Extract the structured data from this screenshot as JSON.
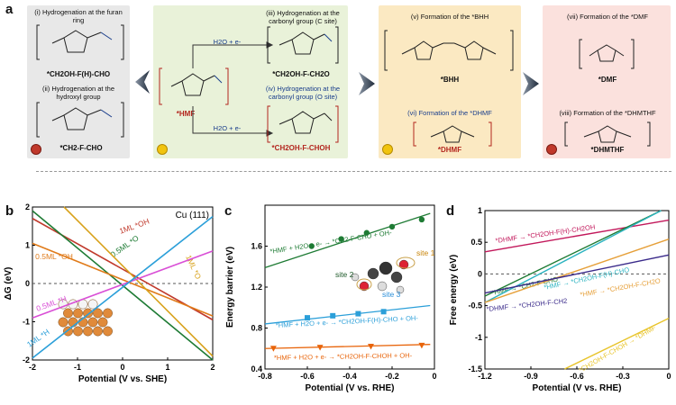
{
  "panel_a": {
    "label": "a",
    "gray": {
      "title1": "(i) Hydrogenation at the furan ring",
      "product1": "*CH2OH-F(H)-CHO",
      "title2": "(ii) Hydrogenation at the hydroxyl group",
      "product2": "*CH2-F-CHO"
    },
    "green": {
      "start": "*HMF",
      "h2o_top": "H2O + e-",
      "h2o_bottom": "H2O + e-",
      "title3": "(iii) Hydrogenation at the carbonyl group (C site)",
      "product3": "*CH2OH-F-CH2O",
      "title4": "(iv) Hydrogenation at the carbonyl group (O site)",
      "product4": "*CH2OH-F-CHOH"
    },
    "yellow": {
      "title5": "(v) Formation of the *BHH",
      "product5": "*BHH",
      "title6": "(vi) Formation of the *DHMF",
      "product6": "*DHMF"
    },
    "pink": {
      "title7": "(vii) Formation of the *DMF",
      "product7": "*DMF",
      "title8": "(viii) Formation of the *DHMTHF",
      "product8": "*DHMTHF"
    }
  },
  "panel_b": {
    "label": "b",
    "surface": "Cu (111)",
    "ylabel": "ΔG (eV)",
    "xlabel": "Potential (V vs. SHE)",
    "line_labels": [
      "1ML *OH",
      "0.5ML *O",
      "0.5ML *OH",
      "1ML *O",
      "0.5ML *H",
      "1ML *H"
    ]
  },
  "panel_c": {
    "label": "c",
    "ylabel": "Energy barrier (eV)",
    "xlabel": "Potential (V vs. RHE)",
    "site_labels": [
      "site 1",
      "site 2",
      "site 3"
    ],
    "series_labels": [
      "*HMF + H2O + e- → *CH2-F-CHO + OH-",
      "*HMF + H2O + e- → *CH2OH-F(H)-CHO + OH-",
      "*HMF + H2O + e- → *CH2OH-F-CHOH + OH-"
    ]
  },
  "panel_d": {
    "label": "d",
    "ylabel": "Free energy (eV)",
    "xlabel": "Potential (V vs. RHE)",
    "line_labels": [
      "*DHMF → *CH2OH-F(H)-CH2OH",
      "*HMF → *CH2-F-CHO",
      "*HMF → *CH2OH-F(H)-CHO",
      "*HMF → *CH2OH-F-CH2O",
      "*DHMF → *CH2OH-F-CH2",
      "*CH2OH-F-CHOH → *DHMF"
    ]
  },
  "chart_data": [
    {
      "type": "line",
      "panel": "b",
      "xlabel": "Potential (V vs. SHE)",
      "ylabel": "ΔG (eV)",
      "xlim": [
        -2,
        2
      ],
      "ylim": [
        -2,
        2
      ],
      "xticks": [
        -2,
        -1,
        0,
        1,
        2
      ],
      "yticks": [
        -2,
        -1,
        0,
        1,
        2
      ],
      "series": [
        {
          "name": "1ML *OH",
          "color": "#c0392b",
          "x": [
            -2,
            2
          ],
          "y": [
            1.7,
            -0.95
          ]
        },
        {
          "name": "0.5ML *O",
          "color": "#1e7b34",
          "x": [
            -2,
            2
          ],
          "y": [
            1.9,
            -2.0
          ]
        },
        {
          "name": "0.5ML *OH",
          "color": "#e07b1a",
          "x": [
            -2,
            2
          ],
          "y": [
            1.05,
            -0.85
          ]
        },
        {
          "name": "1ML *O",
          "color": "#d8a21c",
          "x": [
            -1.3,
            2
          ],
          "y": [
            2.0,
            -1.9
          ]
        },
        {
          "name": "0.5ML *H",
          "color": "#d94fd6",
          "x": [
            -2,
            2
          ],
          "y": [
            -0.9,
            0.85
          ]
        },
        {
          "name": "1ML *H",
          "color": "#2b9fd9",
          "x": [
            -2,
            2
          ],
          "y": [
            -1.95,
            1.75
          ]
        }
      ]
    },
    {
      "type": "line",
      "panel": "c",
      "xlabel": "Potential (V vs. RHE)",
      "ylabel": "Energy barrier (eV)",
      "xlim": [
        -0.8,
        0.0
      ],
      "ylim": [
        0.4,
        2.0
      ],
      "xticks": [
        -0.8,
        -0.6,
        -0.4,
        -0.2,
        0.0
      ],
      "yticks": [
        0.4,
        0.8,
        1.2,
        1.6
      ],
      "series": [
        {
          "name": "*HMF + H2O + e- → *CH2-F-CHO + OH-",
          "color": "#1e7b34",
          "marker": "circle",
          "x": [
            -0.58,
            -0.44,
            -0.32,
            -0.2,
            -0.06
          ],
          "y": [
            1.6,
            1.67,
            1.73,
            1.79,
            1.86
          ],
          "fit": [
            [
              -0.8,
              1.39
            ],
            [
              -0.02,
              1.92
            ]
          ]
        },
        {
          "name": "*HMF + H2O + e- → *CH2OH-F(H)-CHO + OH-",
          "color": "#2b9fd9",
          "marker": "square",
          "x": [
            -0.6,
            -0.48,
            -0.36,
            -0.24
          ],
          "y": [
            0.9,
            0.92,
            0.94,
            0.96
          ],
          "fit": [
            [
              -0.8,
              0.84
            ],
            [
              -0.02,
              1.02
            ]
          ]
        },
        {
          "name": "*HMF + H2O + e- → *CH2OH-F-CHOH + OH-",
          "color": "#e8640a",
          "marker": "triangle",
          "x": [
            -0.76,
            -0.54,
            -0.3,
            -0.06
          ],
          "y": [
            0.6,
            0.61,
            0.62,
            0.63
          ],
          "fit": [
            [
              -0.8,
              0.6
            ],
            [
              -0.02,
              0.64
            ]
          ]
        }
      ]
    },
    {
      "type": "line",
      "panel": "d",
      "xlabel": "Potential (V vs. RHE)",
      "ylabel": "Free energy (eV)",
      "xlim": [
        -1.2,
        0.0
      ],
      "ylim": [
        -1.5,
        1.0
      ],
      "xticks": [
        -1.2,
        -0.9,
        -0.6,
        -0.3,
        0.0
      ],
      "yticks": [
        -1.5,
        -1.0,
        -0.5,
        0.0,
        0.5,
        1.0
      ],
      "series": [
        {
          "name": "*DHMF → *CH2OH-F(H)-CH2OH",
          "color": "#c2185b",
          "x": [
            -1.2,
            0.0
          ],
          "y": [
            0.35,
            0.85
          ]
        },
        {
          "name": "*HMF → *CH2-F-CHO",
          "color": "#1e7b34",
          "x": [
            -1.2,
            -0.05
          ],
          "y": [
            -0.35,
            1.0
          ]
        },
        {
          "name": "*HMF → *CH2OH-F(H)-CHO",
          "color": "#2bb3c0",
          "x": [
            -1.2,
            -0.05
          ],
          "y": [
            -0.45,
            1.0
          ]
        },
        {
          "name": "*HMF → *CH2OH-F-CH2O",
          "color": "#e6a03a",
          "x": [
            -1.2,
            0.0
          ],
          "y": [
            -0.45,
            0.55
          ]
        },
        {
          "name": "*DHMF → *CH2OH-F-CH2",
          "color": "#3a2a8a",
          "x": [
            -1.2,
            0.0
          ],
          "y": [
            -0.3,
            0.3
          ]
        },
        {
          "name": "*CH2OH-F-CHOH → *DHMF",
          "color": "#e8c42a",
          "x": [
            -0.68,
            0.0
          ],
          "y": [
            -1.5,
            -0.7
          ]
        }
      ]
    }
  ]
}
